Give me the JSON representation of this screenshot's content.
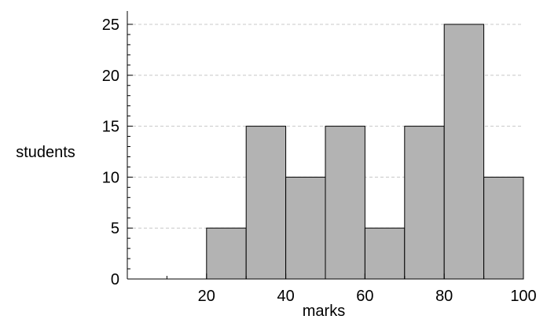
{
  "chart_data": {
    "type": "bar",
    "title": "",
    "xlabel": "marks",
    "ylabel": "students",
    "bins": [
      {
        "start": 0,
        "end": 10,
        "value": 0
      },
      {
        "start": 10,
        "end": 20,
        "value": 0
      },
      {
        "start": 20,
        "end": 30,
        "value": 5
      },
      {
        "start": 30,
        "end": 40,
        "value": 15
      },
      {
        "start": 40,
        "end": 50,
        "value": 10
      },
      {
        "start": 50,
        "end": 60,
        "value": 15
      },
      {
        "start": 60,
        "end": 70,
        "value": 5
      },
      {
        "start": 70,
        "end": 80,
        "value": 15
      },
      {
        "start": 80,
        "end": 90,
        "value": 25
      },
      {
        "start": 90,
        "end": 100,
        "value": 10
      }
    ],
    "xlim": [
      0,
      100
    ],
    "ylim": [
      0,
      26
    ],
    "xticks": [
      20,
      40,
      60,
      80,
      100
    ],
    "yticks": [
      0,
      5,
      10,
      15,
      20,
      25
    ],
    "x_minor_step": 10,
    "y_minor_step": 1,
    "grid": "horizontal dashed",
    "colors": {
      "bar_fill": "#b3b3b3",
      "bar_stroke": "#000000",
      "grid": "#c8c8c8",
      "axis": "#000000"
    }
  }
}
